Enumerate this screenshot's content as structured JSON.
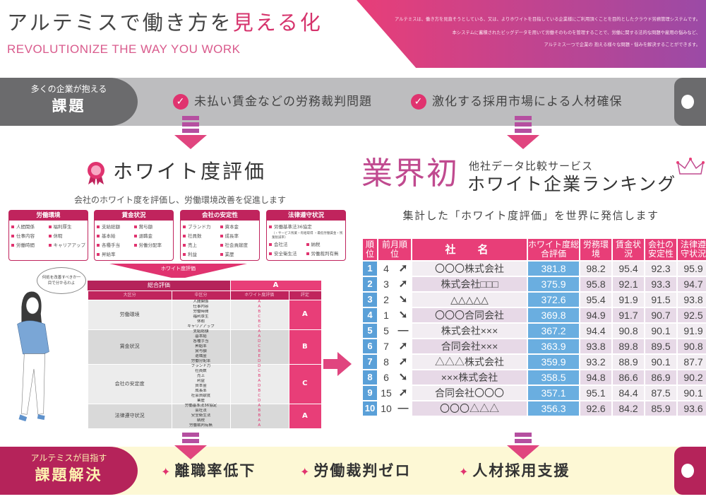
{
  "header": {
    "title_prefix": "アルテミスで働き方を",
    "title_highlight": "見える化",
    "subtitle": "REVOLUTIONIZE THE WAY YOU WORK",
    "intro_lines": [
      "アルテミスは、働き方を見直そうとしている、又は、よりホワイトを目指している企業様にご利用頂くことを目的としたクラウド労務管理システムです。",
      "本システムに蓄積されたビッグデータを用いて労働そのものを管理することで、労働に関する法的な問題や雇用の悩みなど、",
      "アルテミス一つで企業の 抱える様々な問題・悩みを解決することができます。"
    ]
  },
  "issues": {
    "lead_small": "多くの企業が抱える",
    "lead_big": "課題",
    "items": [
      "未払い賃金などの労務裁判問題",
      "激化する採用市場による人材確保"
    ]
  },
  "white_eval": {
    "title": "ホワイト度評価",
    "subtitle": "会社のホワイト度を評価し、労働環境改善を促進します",
    "categories": [
      {
        "name": "労働環境",
        "items": [
          "人間関係",
          "福利厚生",
          "仕事内容",
          "休暇",
          "労働時間",
          "キャリアアップ"
        ]
      },
      {
        "name": "賃金状況",
        "items": [
          "支給総額",
          "賞与額",
          "基本給",
          "退職金",
          "各種手当",
          "労働分配率",
          "昇給率"
        ]
      },
      {
        "name": "会社の安定性",
        "items": [
          "ブランド力",
          "資本金",
          "社員数",
          "成長率",
          "売上",
          "社会貢献度",
          "利益",
          "業歴"
        ]
      },
      {
        "name": "法律遵守状況",
        "items": [
          "労働基準法36協定",
          "会社法",
          "納税",
          "安全衛生法",
          "労働裁判有無"
        ],
        "note": "（・サービス残業・有給取得 ・最低労働賃金・残業削減率）"
      }
    ],
    "funnel_label": "ホワイト度評価",
    "speech": "何処を改善すべきか一目で分かるわよ",
    "table": {
      "total_label": "総合評価",
      "total_value": "A",
      "headers": [
        "大区分",
        "中区分",
        "ホワイト度評価",
        "評定"
      ],
      "groups": [
        {
          "name": "労働環境",
          "grade": "A",
          "rows": [
            [
              "人間関係",
              "A"
            ],
            [
              "仕事内容",
              "A"
            ],
            [
              "労働時間",
              "B"
            ],
            [
              "福利厚生",
              "C"
            ],
            [
              "休暇",
              "B"
            ],
            [
              "キャリアアップ",
              "C"
            ]
          ]
        },
        {
          "name": "賃金状況",
          "grade": "B",
          "rows": [
            [
              "支給総額",
              "A"
            ],
            [
              "基本給",
              "A"
            ],
            [
              "各種手当",
              "D"
            ],
            [
              "昇給率",
              "C"
            ],
            [
              "賞与額",
              "B"
            ],
            [
              "退職金",
              "E"
            ],
            [
              "労働分配率",
              "D"
            ]
          ]
        },
        {
          "name": "会社の安定度",
          "grade": "C",
          "rows": [
            [
              "ブランド力",
              "D"
            ],
            [
              "社員数",
              "C"
            ],
            [
              "売上",
              "B"
            ],
            [
              "利益",
              "A"
            ],
            [
              "資本金",
              "D"
            ],
            [
              "成長率",
              "B"
            ],
            [
              "社会貢献度",
              "C"
            ],
            [
              "業歴",
              "D"
            ]
          ]
        },
        {
          "name": "法律遵守状況",
          "grade": "A",
          "rows": [
            [
              "労働基準法36協定",
              "A"
            ],
            [
              "会社法",
              "B"
            ],
            [
              "安全衛生法",
              "B"
            ],
            [
              "納税",
              "A"
            ],
            [
              "労働裁判有無",
              "A"
            ]
          ]
        }
      ]
    }
  },
  "ranking": {
    "first": "業界初",
    "service": "他社データ比較サービス",
    "title": "ホワイト企業ランキング",
    "subtitle": "集計した「ホワイト度評価」を世界に発信します",
    "headers": [
      "順位",
      "前月順位",
      "社　名",
      "ホワイト度総合評価",
      "労務環境",
      "賃金状況",
      "会社の安定性",
      "法律遵守状況"
    ],
    "rows": [
      {
        "rank": "1",
        "prev": "4",
        "trend": "up",
        "name": "〇〇〇株式会社",
        "total": "381.8",
        "scores": [
          "98.2",
          "95.4",
          "92.3",
          "95.9"
        ]
      },
      {
        "rank": "2",
        "prev": "3",
        "trend": "up",
        "name": "株式会社□□□",
        "total": "375.9",
        "scores": [
          "95.8",
          "92.1",
          "93.3",
          "94.7"
        ]
      },
      {
        "rank": "3",
        "prev": "2",
        "trend": "down",
        "name": "△△△△△",
        "total": "372.6",
        "scores": [
          "95.4",
          "91.9",
          "91.5",
          "93.8"
        ]
      },
      {
        "rank": "4",
        "prev": "1",
        "trend": "down",
        "name": "〇〇〇合同会社",
        "total": "369.8",
        "scores": [
          "94.9",
          "91.7",
          "90.7",
          "92.5"
        ]
      },
      {
        "rank": "5",
        "prev": "5",
        "trend": "same",
        "name": "株式会社×××",
        "total": "367.2",
        "scores": [
          "94.4",
          "90.8",
          "90.1",
          "91.9"
        ]
      },
      {
        "rank": "6",
        "prev": "7",
        "trend": "up",
        "name": "合同会社×××",
        "total": "363.9",
        "scores": [
          "93.8",
          "89.8",
          "89.5",
          "90.8"
        ]
      },
      {
        "rank": "7",
        "prev": "8",
        "trend": "up",
        "name": "△△△株式会社",
        "total": "359.9",
        "scores": [
          "93.2",
          "88.9",
          "90.1",
          "87.7"
        ]
      },
      {
        "rank": "8",
        "prev": "6",
        "trend": "down",
        "name": "×××株式会社",
        "total": "358.5",
        "scores": [
          "94.8",
          "86.6",
          "86.9",
          "90.2"
        ]
      },
      {
        "rank": "9",
        "prev": "15",
        "trend": "up",
        "name": "合同会社〇〇〇",
        "total": "357.1",
        "scores": [
          "95.1",
          "84.4",
          "87.5",
          "90.1"
        ]
      },
      {
        "rank": "10",
        "prev": "10",
        "trend": "same",
        "name": "〇〇〇△△△",
        "total": "356.3",
        "scores": [
          "92.6",
          "84.2",
          "85.9",
          "93.6"
        ]
      }
    ]
  },
  "solutions": {
    "lead_small": "アルテミスが目指す",
    "lead_big": "課題解決",
    "items": [
      "離職率低下",
      "労働裁判ゼロ",
      "人材採用支援"
    ]
  },
  "colors": {
    "accent": "#e83e78",
    "dark_accent": "#b5235a",
    "blue": "#5aa0d8",
    "purple": "#9b4aa6"
  }
}
